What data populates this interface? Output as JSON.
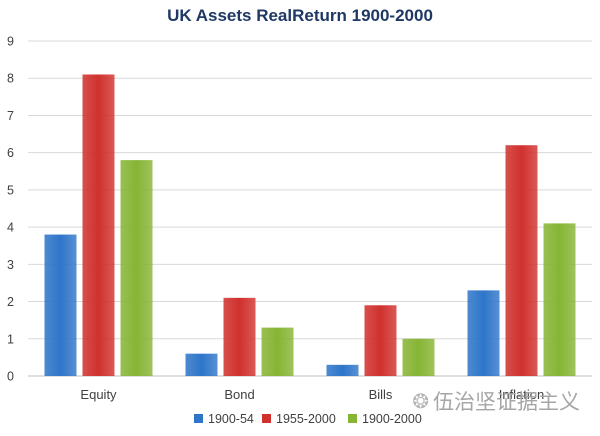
{
  "chart_data": {
    "type": "bar",
    "title": "UK Assets RealReturn 1900-2000",
    "categories": [
      "Equity",
      "Bond",
      "Bills",
      "Inflation"
    ],
    "series": [
      {
        "name": "1900-54",
        "color": "#2e75c9",
        "values": [
          3.8,
          0.6,
          0.3,
          2.3
        ]
      },
      {
        "name": "1955-2000",
        "color": "#d0312d",
        "values": [
          8.1,
          2.1,
          1.9,
          6.2
        ]
      },
      {
        "name": "1900-2000",
        "color": "#86b534",
        "values": [
          5.8,
          1.3,
          1.0,
          4.1
        ]
      }
    ],
    "yticks": [
      "0",
      "1",
      "2",
      "3",
      "4",
      "5",
      "6",
      "7",
      "8",
      "9"
    ],
    "ylim": [
      0,
      9
    ],
    "xlabel": "",
    "ylabel": "",
    "legend_position": "bottom",
    "gridlines": true
  },
  "watermark": {
    "icon": "wechat-icon",
    "text": "伍治坚证据主义"
  }
}
